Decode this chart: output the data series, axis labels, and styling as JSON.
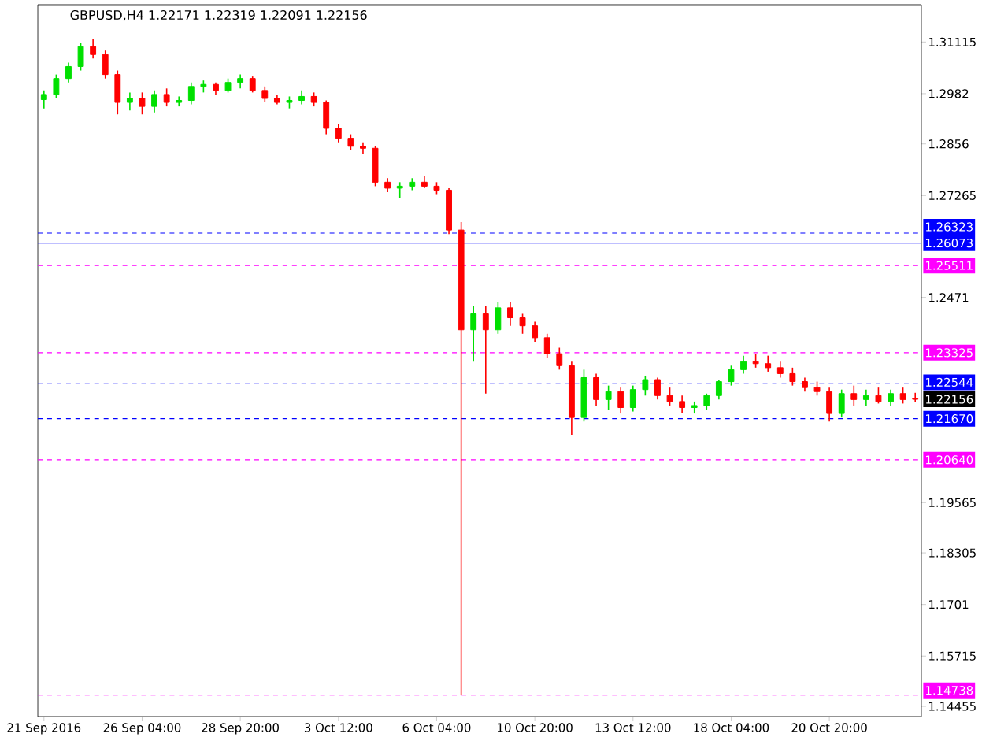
{
  "chart_data": {
    "type": "candlestick",
    "title": "GBPUSD,H4  1.22171 1.22319 1.22091 1.22156",
    "categories": [
      "21 Sep 2016",
      null,
      null,
      null,
      null,
      null,
      null,
      null,
      "26 Sep 04:00",
      null,
      null,
      null,
      null,
      null,
      null,
      null,
      "28 Sep 20:00",
      null,
      null,
      null,
      null,
      null,
      null,
      null,
      "3 Oct 12:00",
      null,
      null,
      null,
      null,
      null,
      null,
      null,
      "6 Oct 04:00",
      null,
      null,
      null,
      null,
      null,
      null,
      null,
      "10 Oct 20:00",
      null,
      null,
      null,
      null,
      null,
      null,
      null,
      "13 Oct 12:00",
      null,
      null,
      null,
      null,
      null,
      null,
      null,
      "18 Oct 04:00",
      null,
      null,
      null,
      null,
      null,
      null,
      null,
      "20 Oct 20:00",
      null,
      null,
      null,
      null,
      null,
      null,
      null
    ],
    "ohlc": [
      [
        1.2967,
        1.299,
        1.2945,
        1.298
      ],
      [
        1.298,
        1.303,
        1.297,
        1.302
      ],
      [
        1.302,
        1.306,
        1.301,
        1.305
      ],
      [
        1.305,
        1.311,
        1.304,
        1.31
      ],
      [
        1.31,
        1.312,
        1.307,
        1.308
      ],
      [
        1.308,
        1.309,
        1.302,
        1.303
      ],
      [
        1.303,
        1.304,
        1.293,
        1.296
      ],
      [
        1.296,
        1.2985,
        1.294,
        1.297
      ],
      [
        1.297,
        1.2985,
        1.293,
        1.295
      ],
      [
        1.295,
        1.299,
        1.2935,
        1.298
      ],
      [
        1.298,
        1.2995,
        1.295,
        1.296
      ],
      [
        1.296,
        1.2975,
        1.295,
        1.2965
      ],
      [
        1.2965,
        1.301,
        1.2955,
        1.3
      ],
      [
        1.3,
        1.3015,
        1.2985,
        1.3005
      ],
      [
        1.3005,
        1.301,
        1.298,
        1.299
      ],
      [
        1.299,
        1.302,
        1.2985,
        1.301
      ],
      [
        1.301,
        1.303,
        1.2995,
        1.302
      ],
      [
        1.302,
        1.3025,
        1.2985,
        1.299
      ],
      [
        1.299,
        1.3,
        1.296,
        1.297
      ],
      [
        1.297,
        1.298,
        1.2955,
        1.296
      ],
      [
        1.296,
        1.2975,
        1.2945,
        1.2965
      ],
      [
        1.2965,
        1.299,
        1.2955,
        1.2975
      ],
      [
        1.2975,
        1.2985,
        1.295,
        1.296
      ],
      [
        1.296,
        1.2965,
        1.288,
        1.2895
      ],
      [
        1.2895,
        1.2905,
        1.286,
        1.287
      ],
      [
        1.287,
        1.288,
        1.284,
        1.285
      ],
      [
        1.285,
        1.286,
        1.283,
        1.2845
      ],
      [
        1.2845,
        1.285,
        1.275,
        1.276
      ],
      [
        1.276,
        1.277,
        1.2735,
        1.2745
      ],
      [
        1.2745,
        1.276,
        1.272,
        1.275
      ],
      [
        1.275,
        1.277,
        1.274,
        1.276
      ],
      [
        1.276,
        1.2775,
        1.2745,
        1.275
      ],
      [
        1.275,
        1.276,
        1.273,
        1.274
      ],
      [
        1.274,
        1.2745,
        1.263,
        1.264
      ],
      [
        1.264,
        1.266,
        1.1474,
        1.239
      ],
      [
        1.239,
        1.245,
        1.231,
        1.243
      ],
      [
        1.243,
        1.245,
        1.223,
        1.239
      ],
      [
        1.239,
        1.246,
        1.238,
        1.2445
      ],
      [
        1.2445,
        1.246,
        1.24,
        1.242
      ],
      [
        1.242,
        1.243,
        1.238,
        1.24
      ],
      [
        1.24,
        1.241,
        1.236,
        1.237
      ],
      [
        1.237,
        1.238,
        1.232,
        1.233
      ],
      [
        1.233,
        1.2345,
        1.229,
        1.23
      ],
      [
        1.23,
        1.231,
        1.2125,
        1.217
      ],
      [
        1.217,
        1.229,
        1.216,
        1.227
      ],
      [
        1.227,
        1.228,
        1.22,
        1.2215
      ],
      [
        1.2215,
        1.225,
        1.219,
        1.2235
      ],
      [
        1.2235,
        1.2245,
        1.218,
        1.2195
      ],
      [
        1.2195,
        1.225,
        1.2185,
        1.224
      ],
      [
        1.224,
        1.2275,
        1.2225,
        1.2265
      ],
      [
        1.2265,
        1.227,
        1.2215,
        1.2225
      ],
      [
        1.2225,
        1.2245,
        1.22,
        1.221
      ],
      [
        1.221,
        1.2225,
        1.218,
        1.2195
      ],
      [
        1.2195,
        1.221,
        1.218,
        1.22
      ],
      [
        1.22,
        1.223,
        1.219,
        1.2225
      ],
      [
        1.2225,
        1.2265,
        1.2215,
        1.226
      ],
      [
        1.226,
        1.23,
        1.225,
        1.229
      ],
      [
        1.229,
        1.2325,
        1.228,
        1.231
      ],
      [
        1.231,
        1.233,
        1.2295,
        1.2305
      ],
      [
        1.2305,
        1.2325,
        1.2285,
        1.2295
      ],
      [
        1.2295,
        1.231,
        1.227,
        1.228
      ],
      [
        1.228,
        1.2295,
        1.225,
        1.226
      ],
      [
        1.226,
        1.227,
        1.2235,
        1.2245
      ],
      [
        1.2245,
        1.226,
        1.2225,
        1.2235
      ],
      [
        1.2235,
        1.2245,
        1.216,
        1.218
      ],
      [
        1.218,
        1.224,
        1.217,
        1.223
      ],
      [
        1.223,
        1.225,
        1.22,
        1.2215
      ],
      [
        1.2215,
        1.224,
        1.22,
        1.2225
      ],
      [
        1.2225,
        1.2245,
        1.2205,
        1.221
      ],
      [
        1.221,
        1.224,
        1.22,
        1.223
      ],
      [
        1.223,
        1.2245,
        1.2205,
        1.2215
      ],
      [
        1.22171,
        1.22319,
        1.22091,
        1.22156
      ]
    ],
    "colors": [
      "#00e000",
      "#00e000",
      "#00e000",
      "#00e000",
      "#ff0000",
      "#ff0000",
      "#ff0000",
      "#00e000",
      "#ff0000",
      "#00e000",
      "#ff0000",
      "#00e000",
      "#00e000",
      "#00e000",
      "#ff0000",
      "#00e000",
      "#00e000",
      "#ff0000",
      "#ff0000",
      "#ff0000",
      "#00e000",
      "#00e000",
      "#ff0000",
      "#ff0000",
      "#ff0000",
      "#ff0000",
      "#ff0000",
      "#ff0000",
      "#ff0000",
      "#00e000",
      "#00e000",
      "#ff0000",
      "#ff0000",
      "#ff0000",
      "#ff0000",
      "#00e000",
      "#ff0000",
      "#00e000",
      "#ff0000",
      "#ff0000",
      "#ff0000",
      "#ff0000",
      "#ff0000",
      "#ff0000",
      "#00e000",
      "#ff0000",
      "#00e000",
      "#ff0000",
      "#00e000",
      "#00e000",
      "#ff0000",
      "#ff0000",
      "#ff0000",
      "#00e000",
      "#00e000",
      "#00e000",
      "#00e000",
      "#00e000",
      "#ff0000",
      "#ff0000",
      "#ff0000",
      "#ff0000",
      "#ff0000",
      "#ff0000",
      "#ff0000",
      "#00e000",
      "#ff0000",
      "#00e000",
      "#ff0000",
      "#00e000",
      "#ff0000",
      "#ff0000"
    ],
    "ylim": [
      1.142,
      1.3205
    ],
    "yticks": [
      1.31115,
      1.2982,
      1.2856,
      1.27265,
      1.2471,
      1.19565,
      1.18305,
      1.1701,
      1.15715,
      1.14455
    ],
    "ref_lines": [
      {
        "axis": "y",
        "value": 1.26323,
        "label": "1.26323",
        "color": "#0000ff",
        "line_style": "dashed"
      },
      {
        "axis": "y",
        "value": 1.26073,
        "label": "1.26073",
        "color": "#0000ff",
        "line_style": "solid"
      },
      {
        "axis": "y",
        "value": 1.25511,
        "label": "1.25511",
        "color": "#ff00ff",
        "line_style": "dashed"
      },
      {
        "axis": "y",
        "value": 1.23325,
        "label": "1.23325",
        "color": "#ff00ff",
        "line_style": "dashed"
      },
      {
        "axis": "y",
        "value": 1.22544,
        "label": "1.22544",
        "color": "#0000ff",
        "line_style": "dashed"
      },
      {
        "axis": "y",
        "value": 1.2167,
        "label": "1.21670",
        "color": "#0000ff",
        "line_style": "dashed"
      },
      {
        "axis": "y",
        "value": 1.2064,
        "label": "1.20640",
        "color": "#ff00ff",
        "line_style": "dashed"
      },
      {
        "axis": "y",
        "value": 1.14738,
        "label": "1.14738",
        "color": "#ff00ff",
        "line_style": "dashed"
      }
    ],
    "annotations": [
      {
        "text": "1.22156",
        "y": 1.22156
      }
    ]
  }
}
